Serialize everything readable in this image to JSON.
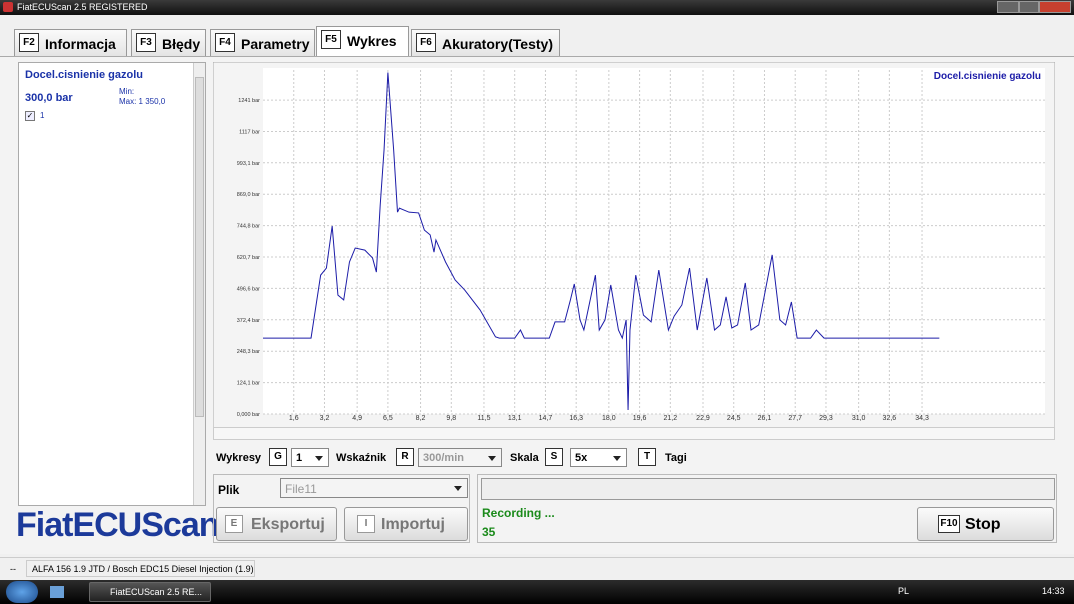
{
  "window": {
    "title": "FiatECUScan 2.5 REGISTERED"
  },
  "tabs": [
    {
      "key": "F2",
      "label": "Informacja"
    },
    {
      "key": "F3",
      "label": "Błędy"
    },
    {
      "key": "F4",
      "label": "Parametry"
    },
    {
      "key": "F5",
      "label": "Wykres"
    },
    {
      "key": "F6",
      "label": "Akuratory(Testy)"
    }
  ],
  "sidebar": {
    "signal": "Docel.cisnienie gazolu",
    "value": "300,0 bar",
    "min": "Min:",
    "max": "Max: 1 350,0",
    "channel": "1"
  },
  "logo": "FiatECUScan",
  "chart_data": {
    "type": "line",
    "x": [
      0.0,
      2.5,
      3.0,
      3.3,
      3.6,
      3.9,
      4.2,
      4.5,
      4.8,
      5.3,
      5.7,
      5.9,
      6.1,
      6.3,
      6.5,
      6.8,
      7.0,
      7.1,
      7.6,
      8.1,
      8.4,
      8.7,
      8.9,
      9.0,
      9.5,
      10.0,
      10.5,
      11.3,
      12.1,
      12.3,
      13.1,
      13.4,
      13.6,
      14.9,
      15.2,
      15.7,
      16.0,
      16.2,
      16.5,
      16.7,
      17.3,
      17.5,
      17.8,
      18.1,
      18.5,
      18.7,
      18.9,
      19.0,
      19.1,
      19.4,
      19.8,
      20.2,
      20.6,
      21.1,
      21.4,
      21.8,
      22.2,
      22.6,
      23.1,
      23.5,
      23.8,
      24.1,
      24.4,
      24.7,
      25.1,
      25.4,
      25.8,
      26.5,
      26.9,
      27.2,
      27.5,
      27.8,
      28.5,
      28.8,
      29.2,
      35.2
    ],
    "series": [
      {
        "name": "Docel.cisnienie gazolu",
        "color": "#1c1ca8",
        "values": [
          300,
          300,
          549,
          577,
          743,
          470,
          451,
          601,
          656,
          648,
          617,
          561,
          826,
          1044,
          1350,
          1044,
          798,
          814,
          798,
          795,
          727,
          708,
          640,
          688,
          601,
          530,
          490,
          411,
          305,
          300,
          300,
          332,
          300,
          300,
          364,
          364,
          451,
          514,
          372,
          332,
          549,
          332,
          372,
          510,
          332,
          300,
          372,
          16,
          332,
          549,
          391,
          364,
          569,
          332,
          387,
          431,
          577,
          332,
          538,
          332,
          352,
          463,
          340,
          352,
          518,
          332,
          352,
          629,
          372,
          352,
          443,
          300,
          300,
          332,
          300,
          300
        ]
      }
    ],
    "xlim": [
      0,
      40.7
    ],
    "ylim": [
      0,
      1360
    ],
    "xticks": [
      {
        "value": 1.6,
        "label": "1,6"
      },
      {
        "value": 3.2,
        "label": "3,2"
      },
      {
        "value": 4.9,
        "label": "4,9"
      },
      {
        "value": 6.5,
        "label": "6,5"
      },
      {
        "value": 8.2,
        "label": "8,2"
      },
      {
        "value": 9.8,
        "label": "9,8"
      },
      {
        "value": 11.5,
        "label": "11,5"
      },
      {
        "value": 13.1,
        "label": "13,1"
      },
      {
        "value": 14.7,
        "label": "14,7"
      },
      {
        "value": 16.3,
        "label": "16,3"
      },
      {
        "value": 18.0,
        "label": "18,0"
      },
      {
        "value": 19.6,
        "label": "19,6"
      },
      {
        "value": 21.2,
        "label": "21,2"
      },
      {
        "value": 22.9,
        "label": "22,9"
      },
      {
        "value": 24.5,
        "label": "24,5"
      },
      {
        "value": 26.1,
        "label": "26,1"
      },
      {
        "value": 27.7,
        "label": "27,7"
      },
      {
        "value": 29.3,
        "label": "29,3"
      },
      {
        "value": 31.0,
        "label": "31,0"
      },
      {
        "value": 32.6,
        "label": "32,6"
      },
      {
        "value": 34.3,
        "label": "34,3"
      }
    ],
    "yticks": [
      {
        "value": 0,
        "label": "0,000 bar"
      },
      {
        "value": 124.1,
        "label": "124,1 bar"
      },
      {
        "value": 248.3,
        "label": "248,3 bar"
      },
      {
        "value": 372.4,
        "label": "372,4 bar"
      },
      {
        "value": 496.6,
        "label": "496,6 bar"
      },
      {
        "value": 620.7,
        "label": "620,7 bar"
      },
      {
        "value": 744.8,
        "label": "744,8 bar"
      },
      {
        "value": 869.0,
        "label": "869,0 bar"
      },
      {
        "value": 993.1,
        "label": "993,1 bar"
      },
      {
        "value": 1117,
        "label": "1117 bar"
      },
      {
        "value": 1241,
        "label": "1241 bar"
      }
    ],
    "grid": true,
    "legend": "top-right"
  },
  "controls": {
    "charts_label": "Wykresy",
    "charts_key": "G",
    "charts_value": "1",
    "pointer_label": "Wskaźnik",
    "pointer_key": "R",
    "pointer_value": "300/min",
    "scale_label": "Skala",
    "scale_key": "S",
    "scale_value": "5x",
    "tags_key": "T",
    "tags_label": "Tagi"
  },
  "file": {
    "label": "Plik",
    "value": "File11",
    "export_key": "E",
    "export": "Eksportuj",
    "import_key": "I",
    "import": "Importuj"
  },
  "status": {
    "text": "Recording ...",
    "count": "35",
    "stop_key": "F10",
    "stop": "Stop"
  },
  "statusbar": {
    "left": "--",
    "vehicle": "ALFA 156 1.9 JTD / Bosch EDC15 Diesel Injection (1.9)"
  },
  "taskbar": {
    "task": "FiatECUScan 2.5 RE...",
    "lang": "PL",
    "clock": "14:33"
  }
}
